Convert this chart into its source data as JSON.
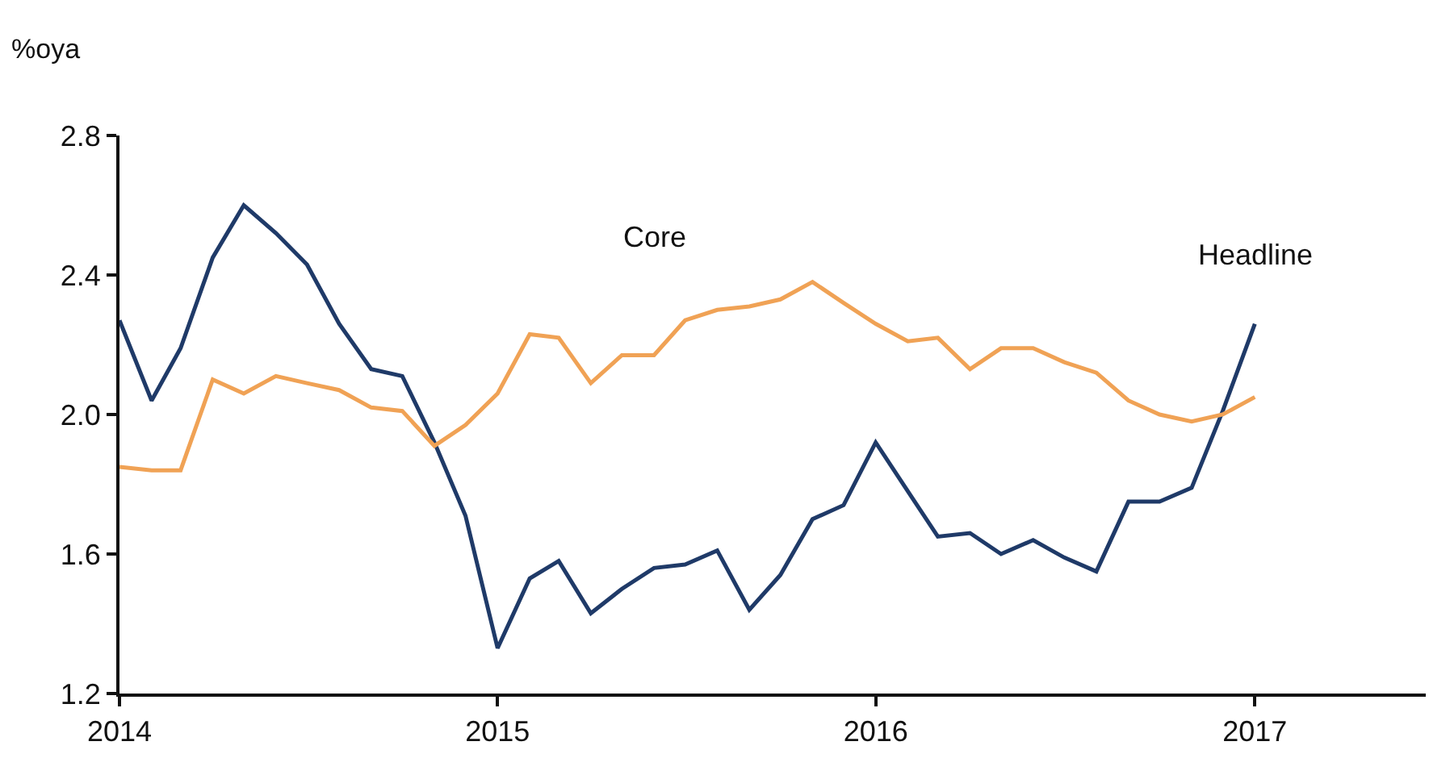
{
  "chart_data": {
    "type": "line",
    "ylabel": "%oya",
    "x": [
      "2014-01",
      "2014-02",
      "2014-03",
      "2014-04",
      "2014-05",
      "2014-06",
      "2014-07",
      "2014-08",
      "2014-09",
      "2014-10",
      "2014-11",
      "2014-12",
      "2015-01",
      "2015-02",
      "2015-03",
      "2015-04",
      "2015-05",
      "2015-06",
      "2015-07",
      "2015-08",
      "2015-09",
      "2015-10",
      "2015-11",
      "2015-12",
      "2016-01",
      "2016-02",
      "2016-03",
      "2016-04",
      "2016-05",
      "2016-06",
      "2016-07",
      "2016-08",
      "2016-09",
      "2016-10",
      "2016-11",
      "2016-12",
      "2017-01"
    ],
    "series": [
      {
        "name": "Headline",
        "color": "#1f3a68",
        "values": [
          2.27,
          2.04,
          2.19,
          2.45,
          2.6,
          2.52,
          2.43,
          2.26,
          2.13,
          2.11,
          1.92,
          1.71,
          1.33,
          1.53,
          1.58,
          1.43,
          1.5,
          1.56,
          1.57,
          1.61,
          1.44,
          1.54,
          1.7,
          1.74,
          1.92,
          1.78,
          1.65,
          1.66,
          1.6,
          1.64,
          1.59,
          1.55,
          1.75,
          1.75,
          1.79,
          2.01,
          2.26
        ]
      },
      {
        "name": "Core",
        "color": "#f0a255",
        "values": [
          1.85,
          1.84,
          1.84,
          2.1,
          2.06,
          2.11,
          2.09,
          2.07,
          2.02,
          2.01,
          1.91,
          1.97,
          2.06,
          2.23,
          2.22,
          2.09,
          2.17,
          2.17,
          2.27,
          2.3,
          2.31,
          2.33,
          2.38,
          2.32,
          2.26,
          2.21,
          2.22,
          2.13,
          2.19,
          2.19,
          2.15,
          2.12,
          2.04,
          2.0,
          1.98,
          2.0,
          2.05
        ]
      }
    ],
    "xlim": [
      "2014-01-01",
      "2017-06-15"
    ],
    "xticks": [
      {
        "value": "2014-01-01",
        "label": "2014"
      },
      {
        "value": "2015-01-01",
        "label": "2015"
      },
      {
        "value": "2016-01-01",
        "label": "2016"
      },
      {
        "value": "2017-01-01",
        "label": "2017"
      }
    ],
    "ylim": [
      1.2,
      2.8
    ],
    "yticks": [
      {
        "value": 1.2,
        "label": "1.2"
      },
      {
        "value": 1.6,
        "label": "1.6"
      },
      {
        "value": 2.0,
        "label": "2.0"
      },
      {
        "value": 2.4,
        "label": "2.4"
      },
      {
        "value": 2.8,
        "label": "2.8"
      }
    ],
    "grid": false,
    "legend": false,
    "marker": "none",
    "line_style": "solid"
  }
}
